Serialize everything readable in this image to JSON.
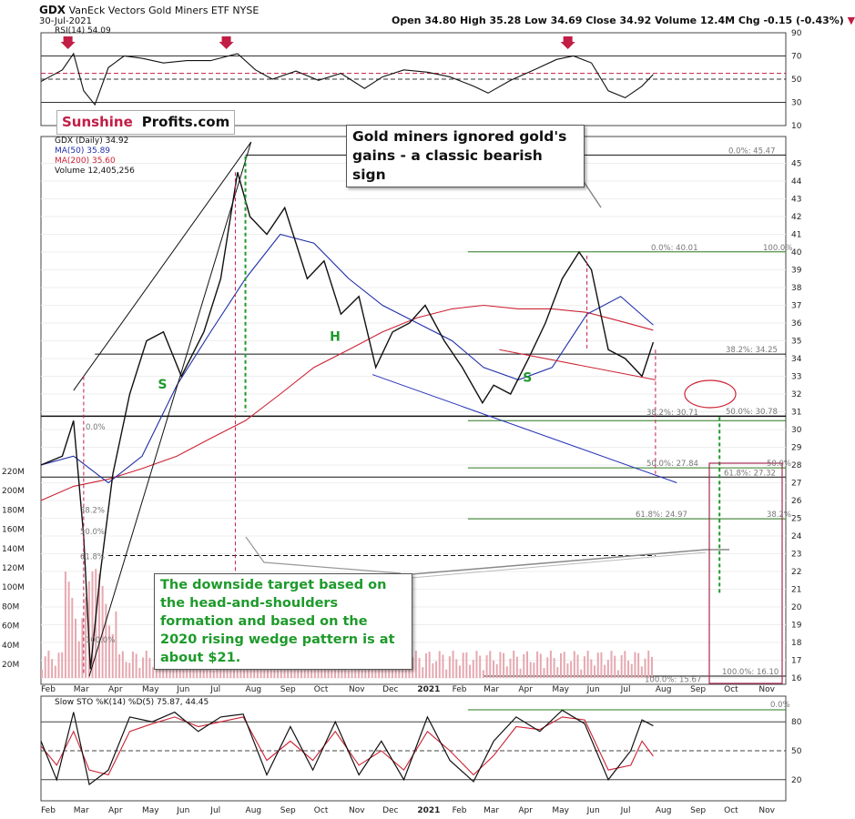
{
  "header": {
    "ticker": "GDX",
    "name": "VanEck Vectors Gold Miners ETF",
    "exchange": "NYSE",
    "date": "30-Jul-2021",
    "quote_text": "Open 34.80  High 35.28  Low 34.69  Close 34.92  Volume 12.4M  Chg -0.15 (-0.43%)",
    "arrow": "▼"
  },
  "logo": {
    "part1": "Sunshine",
    "part2": "Profits.com"
  },
  "annotations": {
    "top_note": "Gold miners ignored gold's gains - a classic bearish sign",
    "bottom_note": "The downside target based on the head-and-shoulders formation and based on the 2020 rising wedge pattern is at about $21."
  },
  "colors": {
    "price_bar": "#111111",
    "down_bar": "#cc2244",
    "ma50": "#1f2fa8",
    "ma200": "#cc2233",
    "fib": "#2a7a1f",
    "pattern_green": "#1e9a2b",
    "arrow": "#c21d45",
    "stoch_d": "#cc2233",
    "volume": "#e6a8b0"
  },
  "chart_data": [
    {
      "type": "line",
      "panel": "rsi",
      "title": "RSI(14) 54.09",
      "ylim": [
        10,
        90
      ],
      "y_ticks": [
        10,
        30,
        50,
        70,
        90
      ],
      "guide_levels": [
        30,
        50,
        55,
        70
      ],
      "x": [
        "2020-02-01",
        "2020-02-20",
        "2020-03-01",
        "2020-03-10",
        "2020-03-20",
        "2020-04-01",
        "2020-04-15",
        "2020-05-01",
        "2020-05-20",
        "2020-06-10",
        "2020-07-01",
        "2020-07-25",
        "2020-08-10",
        "2020-08-25",
        "2020-09-15",
        "2020-10-05",
        "2020-10-25",
        "2020-11-15",
        "2020-12-01",
        "2020-12-20",
        "2021-01-10",
        "2021-01-30",
        "2021-02-20",
        "2021-03-05",
        "2021-03-25",
        "2021-04-15",
        "2021-05-05",
        "2021-05-20",
        "2021-06-05",
        "2021-06-20",
        "2021-07-05",
        "2021-07-20",
        "2021-07-30"
      ],
      "values": [
        48,
        58,
        72,
        40,
        28,
        60,
        70,
        68,
        64,
        66,
        66,
        72,
        58,
        50,
        57,
        49,
        55,
        42,
        52,
        58,
        56,
        52,
        44,
        38,
        49,
        58,
        67,
        70,
        64,
        40,
        34,
        44,
        54.09
      ],
      "signal_arrows": [
        "2020-02-25",
        "2020-07-15",
        "2021-05-15"
      ],
      "legend": "top-left"
    },
    {
      "type": "line",
      "panel": "price",
      "title": "GDX (Daily) 34.92",
      "ylim": [
        16,
        46
      ],
      "y_ticks": [
        16,
        17,
        18,
        19,
        20,
        21,
        22,
        23,
        24,
        25,
        26,
        27,
        28,
        29,
        30,
        31,
        32,
        33,
        34,
        35,
        36,
        37,
        38,
        39,
        40,
        41,
        42,
        43,
        44,
        45
      ],
      "x_tick_labels": [
        "Feb",
        "Mar",
        "Apr",
        "May",
        "Jun",
        "Jul",
        "Aug",
        "Sep",
        "Oct",
        "Nov",
        "Dec",
        "2021",
        "Feb",
        "Mar",
        "Apr",
        "May",
        "Jun",
        "Jul",
        "Aug",
        "Sep",
        "Oct",
        "Nov"
      ],
      "legend": "top-left",
      "series": [
        {
          "name": "GDX (Daily) 34.92",
          "x": [
            "2020-02-01",
            "2020-02-20",
            "2020-03-01",
            "2020-03-10",
            "2020-03-16",
            "2020-03-25",
            "2020-04-05",
            "2020-04-20",
            "2020-05-05",
            "2020-05-20",
            "2020-06-05",
            "2020-06-25",
            "2020-07-10",
            "2020-07-25",
            "2020-08-05",
            "2020-08-20",
            "2020-09-05",
            "2020-09-25",
            "2020-10-10",
            "2020-10-25",
            "2020-11-10",
            "2020-11-25",
            "2020-12-10",
            "2020-12-25",
            "2021-01-08",
            "2021-01-25",
            "2021-02-10",
            "2021-02-28",
            "2021-03-10",
            "2021-03-25",
            "2021-04-10",
            "2021-04-25",
            "2021-05-10",
            "2021-05-25",
            "2021-06-05",
            "2021-06-20",
            "2021-07-05",
            "2021-07-20",
            "2021-07-30"
          ],
          "values": [
            28.0,
            28.5,
            30.5,
            24.0,
            16.5,
            22.0,
            27.5,
            32.0,
            35.0,
            35.5,
            33.0,
            35.5,
            38.5,
            44.5,
            42.0,
            41.0,
            42.5,
            38.5,
            39.5,
            36.5,
            37.5,
            33.5,
            35.5,
            36.0,
            37.0,
            35.0,
            33.5,
            31.5,
            32.5,
            32.0,
            34.0,
            36.0,
            38.5,
            40.0,
            39.0,
            34.5,
            34.0,
            33.0,
            34.92
          ]
        },
        {
          "name": "MA(50) 35.89",
          "x": [
            "2020-02-01",
            "2020-03-01",
            "2020-04-01",
            "2020-05-01",
            "2020-06-01",
            "2020-07-01",
            "2020-08-01",
            "2020-09-01",
            "2020-10-01",
            "2020-11-01",
            "2020-12-01",
            "2021-01-01",
            "2021-02-01",
            "2021-03-01",
            "2021-04-01",
            "2021-05-01",
            "2021-06-01",
            "2021-07-01",
            "2021-07-30"
          ],
          "values": [
            28.0,
            28.5,
            27.0,
            28.5,
            32.5,
            35.5,
            38.5,
            41.0,
            40.5,
            38.5,
            37.0,
            36.0,
            35.0,
            33.5,
            32.8,
            33.5,
            36.5,
            37.5,
            35.89
          ]
        },
        {
          "name": "MA(200) 35.60",
          "x": [
            "2020-02-01",
            "2020-03-01",
            "2020-04-01",
            "2020-05-01",
            "2020-06-01",
            "2020-07-01",
            "2020-08-01",
            "2020-09-01",
            "2020-10-01",
            "2020-11-01",
            "2020-12-01",
            "2021-01-01",
            "2021-02-01",
            "2021-03-01",
            "2021-04-01",
            "2021-05-01",
            "2021-06-01",
            "2021-07-01",
            "2021-07-30"
          ],
          "values": [
            26.0,
            26.8,
            27.2,
            27.8,
            28.5,
            29.5,
            30.5,
            32.0,
            33.5,
            34.5,
            35.5,
            36.3,
            36.8,
            37.0,
            36.8,
            36.8,
            36.6,
            36.1,
            35.6
          ]
        }
      ],
      "levels_text": [
        {
          "label": "0.0%: 45.47",
          "value": 45.47
        },
        {
          "label": "0.0%: 40.01",
          "value": 40.01
        },
        {
          "label": "100.0%",
          "value": 40.01
        },
        {
          "label": "38.2%: 34.25",
          "value": 34.25
        },
        {
          "label": "38.2%: 30.71",
          "value": 30.71
        },
        {
          "label": "50.0%: 30.78",
          "value": 30.78
        },
        {
          "label": "50.0%: 27.84",
          "value": 27.84
        },
        {
          "label": "61.8%: 27.32",
          "value": 27.32
        },
        {
          "label": "50.0%",
          "value": 27.84
        },
        {
          "label": "61.8%: 24.97",
          "value": 24.97
        },
        {
          "label": "38.2%",
          "value": 24.97
        },
        {
          "label": "100.0%: 16.10",
          "value": 16.1
        },
        {
          "label": "100.0%: 15.67",
          "value": 15.67
        },
        {
          "label": "0.0%",
          "value": 29.9
        },
        {
          "label": "38.2%",
          "value": 25.2
        },
        {
          "label": "50.0%",
          "value": 24.0
        },
        {
          "label": "61.8%",
          "value": 22.6
        },
        {
          "label": "100.0%",
          "value": 17.9
        }
      ],
      "pattern_labels": [
        "S",
        "H",
        "S"
      ],
      "volume": {
        "title": "Volume 12,405,256",
        "y_tick_labels": [
          "20M",
          "40M",
          "60M",
          "80M",
          "100M",
          "120M",
          "140M",
          "160M",
          "180M",
          "200M",
          "220M"
        ]
      }
    },
    {
      "type": "line",
      "panel": "stochastic",
      "title": "Slow STO %K(14) %D(5) 75.87, 44.45",
      "ylim": [
        0,
        100
      ],
      "y_ticks": [
        20,
        50,
        80
      ],
      "top_label": "0.0%",
      "x_tick_labels": [
        "Feb",
        "Mar",
        "Apr",
        "May",
        "Jun",
        "Jul",
        "Aug",
        "Sep",
        "Oct",
        "Nov",
        "Dec",
        "2021",
        "Feb",
        "Mar",
        "Apr",
        "May",
        "Jun",
        "Jul",
        "Aug",
        "Sep",
        "Oct",
        "Nov"
      ],
      "series": [
        {
          "name": "%K(14)",
          "x": [
            "2020-02-01",
            "2020-02-15",
            "2020-03-01",
            "2020-03-15",
            "2020-04-01",
            "2020-04-20",
            "2020-05-10",
            "2020-05-30",
            "2020-06-20",
            "2020-07-10",
            "2020-07-30",
            "2020-08-20",
            "2020-09-10",
            "2020-09-30",
            "2020-10-20",
            "2020-11-10",
            "2020-11-30",
            "2020-12-20",
            "2021-01-10",
            "2021-01-30",
            "2021-02-20",
            "2021-03-10",
            "2021-03-30",
            "2021-04-20",
            "2021-05-10",
            "2021-05-30",
            "2021-06-20",
            "2021-07-10",
            "2021-07-20",
            "2021-07-30"
          ],
          "values": [
            60,
            20,
            90,
            15,
            30,
            85,
            80,
            90,
            70,
            85,
            88,
            25,
            75,
            30,
            80,
            25,
            60,
            20,
            85,
            40,
            18,
            60,
            85,
            70,
            92,
            78,
            20,
            50,
            82,
            75.87
          ]
        },
        {
          "name": "%D(5)",
          "x": [
            "2020-02-01",
            "2020-02-15",
            "2020-03-01",
            "2020-03-15",
            "2020-04-01",
            "2020-04-20",
            "2020-05-10",
            "2020-05-30",
            "2020-06-20",
            "2020-07-10",
            "2020-07-30",
            "2020-08-20",
            "2020-09-10",
            "2020-09-30",
            "2020-10-20",
            "2020-11-10",
            "2020-11-30",
            "2020-12-20",
            "2021-01-10",
            "2021-01-30",
            "2021-02-20",
            "2021-03-10",
            "2021-03-30",
            "2021-04-20",
            "2021-05-10",
            "2021-05-30",
            "2021-06-20",
            "2021-07-10",
            "2021-07-20",
            "2021-07-30"
          ],
          "values": [
            55,
            35,
            70,
            30,
            25,
            70,
            78,
            85,
            75,
            80,
            85,
            40,
            60,
            40,
            70,
            35,
            50,
            30,
            70,
            50,
            25,
            45,
            75,
            72,
            85,
            82,
            30,
            35,
            60,
            44.45
          ]
        }
      ]
    }
  ]
}
